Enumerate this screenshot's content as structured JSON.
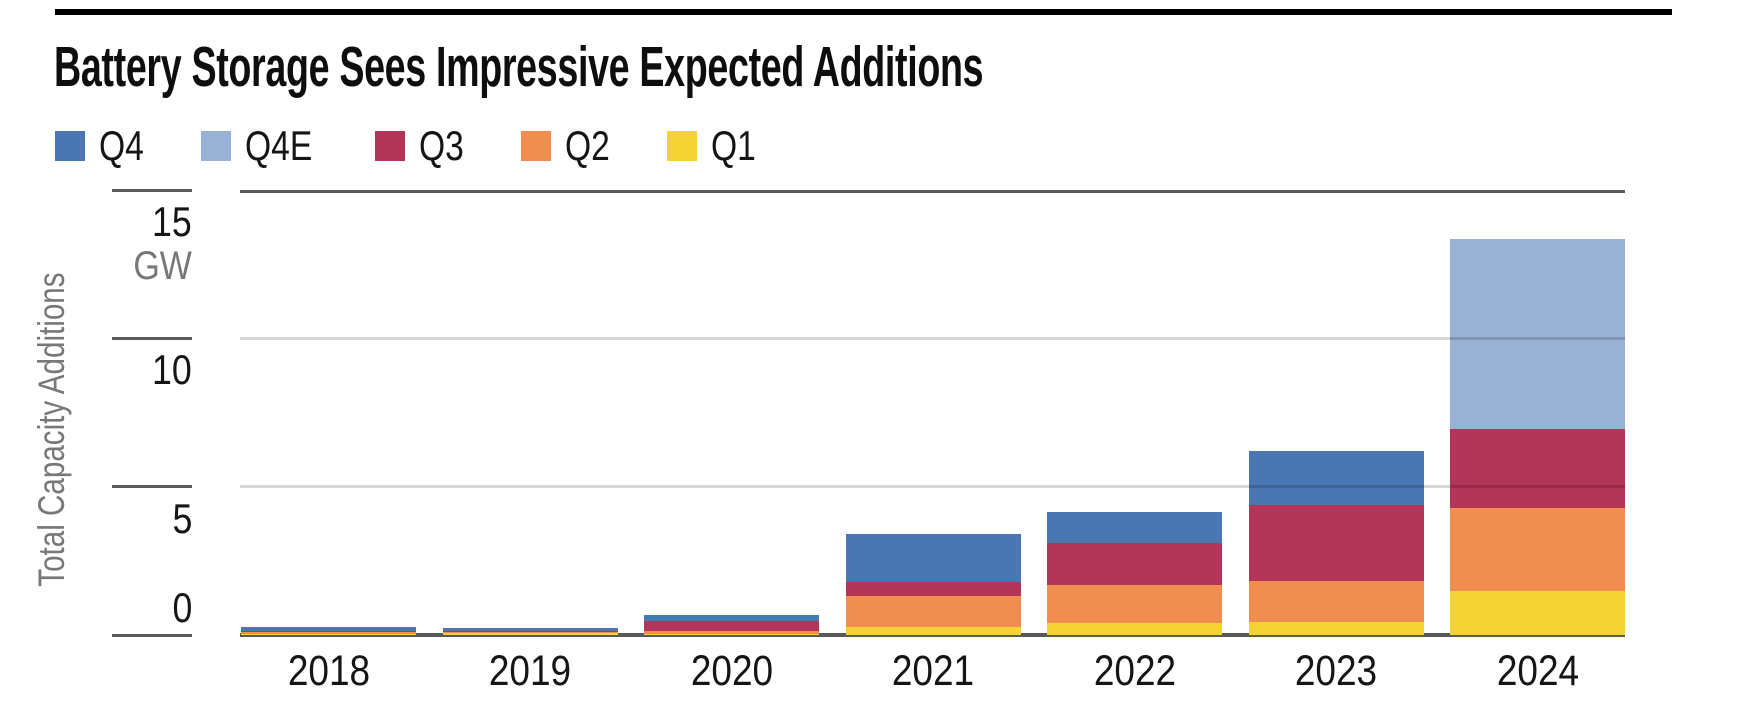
{
  "chart": {
    "legend": [
      {
        "id": "q4",
        "label": "Q4",
        "color": "#4A77B4"
      },
      {
        "id": "q4e",
        "label": "Q4E",
        "color": "#98B1D4"
      },
      {
        "id": "q3",
        "label": "Q3",
        "color": "#B3365A"
      },
      {
        "id": "q2",
        "label": "Q2",
        "color": "#F08D50"
      },
      {
        "id": "q1",
        "label": "Q1",
        "color": "#F5D334"
      }
    ]
  },
  "chart_data": {
    "type": "bar",
    "stacked": true,
    "title": "Battery Storage Sees Impressive Expected Additions",
    "categories": [
      "2018",
      "2019",
      "2020",
      "2021",
      "2022",
      "2023",
      "2024"
    ],
    "series": [
      {
        "name": "Q1",
        "color": "#F5D334",
        "values": [
          0.03,
          0.07,
          0.05,
          0.26,
          0.4,
          0.43,
          1.5
        ]
      },
      {
        "name": "Q2",
        "color": "#F08D50",
        "values": [
          0.08,
          0.02,
          0.08,
          1.05,
          1.28,
          1.38,
          2.77
        ]
      },
      {
        "name": "Q3",
        "color": "#B3365A",
        "values": [
          0.03,
          0.05,
          0.33,
          0.48,
          1.41,
          2.57,
          2.66
        ]
      },
      {
        "name": "Q4",
        "color": "#4A77B4",
        "values": [
          0.12,
          0.1,
          0.22,
          1.6,
          1.05,
          1.83,
          0
        ]
      },
      {
        "name": "Q4E",
        "color": "#98B1D4",
        "values": [
          0,
          0,
          0,
          0,
          0,
          0,
          6.43
        ]
      }
    ],
    "stack_order_bottom_to_top": [
      "Q1",
      "Q2",
      "Q3",
      "Q4",
      "Q4E"
    ],
    "legend_order": [
      "Q4",
      "Q4E",
      "Q3",
      "Q2",
      "Q1"
    ],
    "ylabel": "Total Capacity Additions",
    "y_unit": "GW",
    "yticks": [
      15,
      10,
      5,
      0
    ],
    "ylim": [
      0,
      15
    ],
    "xlabel": "",
    "grid": "horizontal",
    "legend_position": "top"
  }
}
